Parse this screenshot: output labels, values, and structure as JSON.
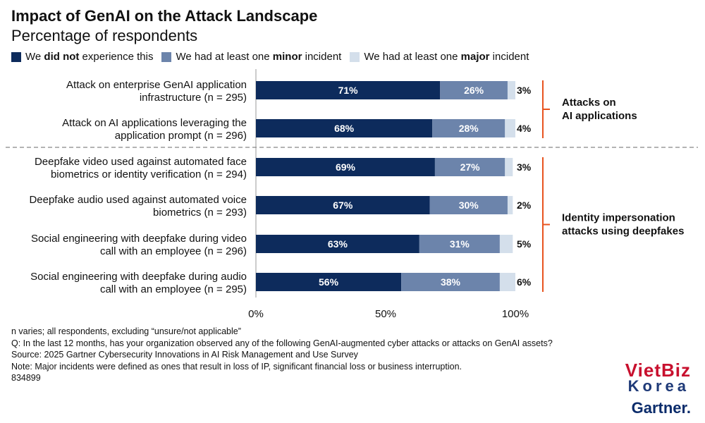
{
  "header": {
    "title": "Impact of GenAI on the Attack Landscape",
    "subtitle": "Percentage of respondents"
  },
  "legend": {
    "item1": {
      "pre": "We ",
      "bold": "did not",
      "post": " experience this"
    },
    "item2": {
      "pre": "We had at least one ",
      "bold": "minor",
      "post": " incident"
    },
    "item3": {
      "pre": "We had at least one ",
      "bold": "major",
      "post": " incident"
    }
  },
  "colors": {
    "did_not": "#0d2b5c",
    "minor": "#6c84ab",
    "major": "#d4dfeb",
    "bracket": "#e8541f"
  },
  "chart_data": {
    "type": "bar",
    "orientation": "horizontal",
    "stacked": true,
    "categories": [
      [
        "Attack on enterprise GenAI application",
        "infrastructure (n = 295)"
      ],
      [
        "Attack on AI applications leveraging the",
        "application prompt (n = 296)"
      ],
      [
        "Deepfake video used against automated face",
        "biometrics or identity verification (n = 294)"
      ],
      [
        "Deepfake audio used against automated voice",
        "biometrics (n = 293)"
      ],
      [
        "Social engineering with deepfake during video",
        "call with an employee (n = 296)"
      ],
      [
        "Social engineering with deepfake during audio",
        "call with an employee (n = 295)"
      ]
    ],
    "series": [
      {
        "name": "We did not experience this",
        "values": [
          71,
          68,
          69,
          67,
          63,
          56
        ]
      },
      {
        "name": "We had at least one minor incident",
        "values": [
          26,
          28,
          27,
          30,
          31,
          38
        ]
      },
      {
        "name": "We had at least one major incident",
        "values": [
          3,
          4,
          3,
          2,
          5,
          6
        ]
      }
    ],
    "xticks": [
      "0%",
      "50%",
      "100%"
    ],
    "xlim": [
      0,
      100
    ],
    "groups": [
      {
        "label": [
          "Attacks on",
          "AI applications"
        ],
        "rows": [
          0,
          1
        ]
      },
      {
        "label": [
          "Identity impersonation",
          "attacks using deepfakes"
        ],
        "rows": [
          2,
          5
        ]
      }
    ]
  },
  "notes": [
    "n varies; all respondents, excluding “unsure/not applicable”",
    "Q: In the last 12 months, has your organization observed any of the following GenAI-augmented cyber attacks or attacks on GenAI assets?",
    "Source: 2025 Gartner Cybersecurity Innovations in AI Risk Management and Use Survey",
    "Note: Major incidents were defined as ones that result in loss of IP, significant financial loss or business interruption.",
    "834899"
  ],
  "logos": {
    "vietbiz": "VietBiz",
    "korea": "Korea",
    "gartner": "Gartner."
  }
}
